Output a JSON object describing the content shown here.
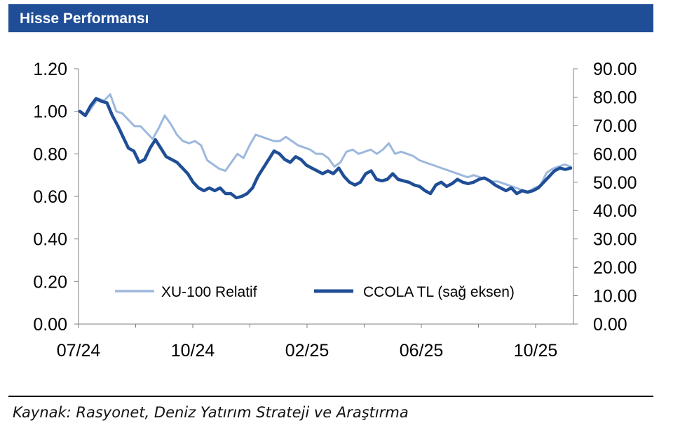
{
  "header": {
    "title": "Hisse Performansı"
  },
  "footer": {
    "source": "Kaynak: Rasyonet, Deniz Yatırım Strateji ve Araştırma"
  },
  "colors": {
    "header_bg": "#1f4e96",
    "relative": "#9db8dd",
    "price": "#1f4e96"
  },
  "chart_data": {
    "type": "line",
    "title": "",
    "x_tick_labels": [
      "07/24",
      "10/24",
      "02/25",
      "06/25",
      "10/25"
    ],
    "y_left": {
      "range": [
        0,
        1.2
      ],
      "ticks": [
        "0.00",
        "0.20",
        "0.40",
        "0.60",
        "0.80",
        "1.00",
        "1.20"
      ]
    },
    "y_right": {
      "range": [
        0,
        90
      ],
      "ticks": [
        "0.00",
        "10.00",
        "20.00",
        "30.00",
        "40.00",
        "50.00",
        "60.00",
        "70.00",
        "80.00",
        "90.00"
      ]
    },
    "legend_position": "bottom-center",
    "grid": false,
    "series": [
      {
        "name": "XU-100 Relatif",
        "axis": "left",
        "values": [
          1.0,
          0.98,
          1.02,
          1.06,
          1.05,
          1.08,
          1.0,
          0.99,
          0.96,
          0.93,
          0.93,
          0.9,
          0.87,
          0.92,
          0.98,
          0.94,
          0.89,
          0.86,
          0.85,
          0.86,
          0.84,
          0.77,
          0.75,
          0.73,
          0.72,
          0.76,
          0.8,
          0.78,
          0.84,
          0.89,
          0.88,
          0.87,
          0.86,
          0.86,
          0.88,
          0.86,
          0.84,
          0.83,
          0.82,
          0.8,
          0.8,
          0.78,
          0.74,
          0.76,
          0.81,
          0.82,
          0.8,
          0.81,
          0.82,
          0.8,
          0.82,
          0.85,
          0.8,
          0.81,
          0.8,
          0.79,
          0.77,
          0.76,
          0.75,
          0.74,
          0.73,
          0.72,
          0.71,
          0.7,
          0.69,
          0.7,
          0.69,
          0.68,
          0.67,
          0.67,
          0.66,
          0.65,
          0.64,
          0.63,
          0.62,
          0.64,
          0.65,
          0.71,
          0.73,
          0.74,
          0.75,
          0.74
        ]
      },
      {
        "name": "CCOLA TL (sağ eksen)",
        "axis": "right",
        "values": [
          75.0,
          73.5,
          77.0,
          79.5,
          78.5,
          78.0,
          73.5,
          70.0,
          66.0,
          62.0,
          61.0,
          57.0,
          58.0,
          62.0,
          65.0,
          62.0,
          59.0,
          58.0,
          57.0,
          55.0,
          53.0,
          50.0,
          48.0,
          47.0,
          48.0,
          47.0,
          48.0,
          46.0,
          46.0,
          44.5,
          45.0,
          46.0,
          48.0,
          52.0,
          55.0,
          58.0,
          61.0,
          60.0,
          58.0,
          57.0,
          59.0,
          58.0,
          56.0,
          55.0,
          54.0,
          53.0,
          54.0,
          53.0,
          55.0,
          52.0,
          50.0,
          49.0,
          50.0,
          53.0,
          54.0,
          51.0,
          50.5,
          51.0,
          53.0,
          51.0,
          50.5,
          50.0,
          49.0,
          48.5,
          47.0,
          46.0,
          49.0,
          50.0,
          48.5,
          49.5,
          51.0,
          50.0,
          49.5,
          50.0,
          51.0,
          51.5,
          50.5,
          49.0,
          48.0,
          47.0,
          48.0,
          46.0,
          47.0,
          46.5,
          47.0,
          48.0,
          50.0,
          52.0,
          54.0,
          55.0,
          54.5,
          55.0
        ]
      }
    ]
  }
}
